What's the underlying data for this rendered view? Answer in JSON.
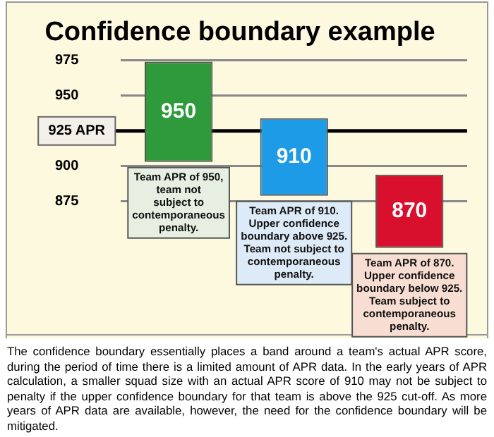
{
  "chart_data": {
    "type": "bar",
    "title": "Confidence boundary example",
    "categories": [
      null,
      null,
      null
    ],
    "values": [
      71,
      55,
      52
    ],
    "base": [
      903,
      879,
      842
    ],
    "colors": [
      "#2e9a3c",
      "#1d9be6",
      "#d8102e"
    ],
    "ylim": [
      780,
      975
    ],
    "yticks": [
      875,
      900,
      950,
      975
    ],
    "grid": "y",
    "legend": false,
    "tick_labels": "y",
    "ref_lines": [
      {
        "axis": "y",
        "value": 925,
        "label": "925 APR",
        "color": "#000000"
      }
    ],
    "annotations": [
      "950",
      "910",
      "870",
      "Team APR of 950,\nteam not\nsubject to\ncontemporaneous\npenalty.",
      "Team APR of 910.\nUpper confidence\nboundary above 925.\nTeam not subject to\ncontemporaneous\npenalty.",
      "Team APR of 870.\nUpper confidence\nboundary below 925.\nTeam subject to\ncontemporaneous\npenalty.",
      "The confidence boundary essentially places a band around a team's actual APR score, during the period of time there is a limited amount of APR data. In the early years of APR calculation, a smaller squad size with an actual APR score of 910 may not be subject to penalty if the upper confidence boundary for that team is above the 925 cut-off. As more years of APR data are available, however, the need for the confidence boundary will be mitigated."
    ]
  }
}
